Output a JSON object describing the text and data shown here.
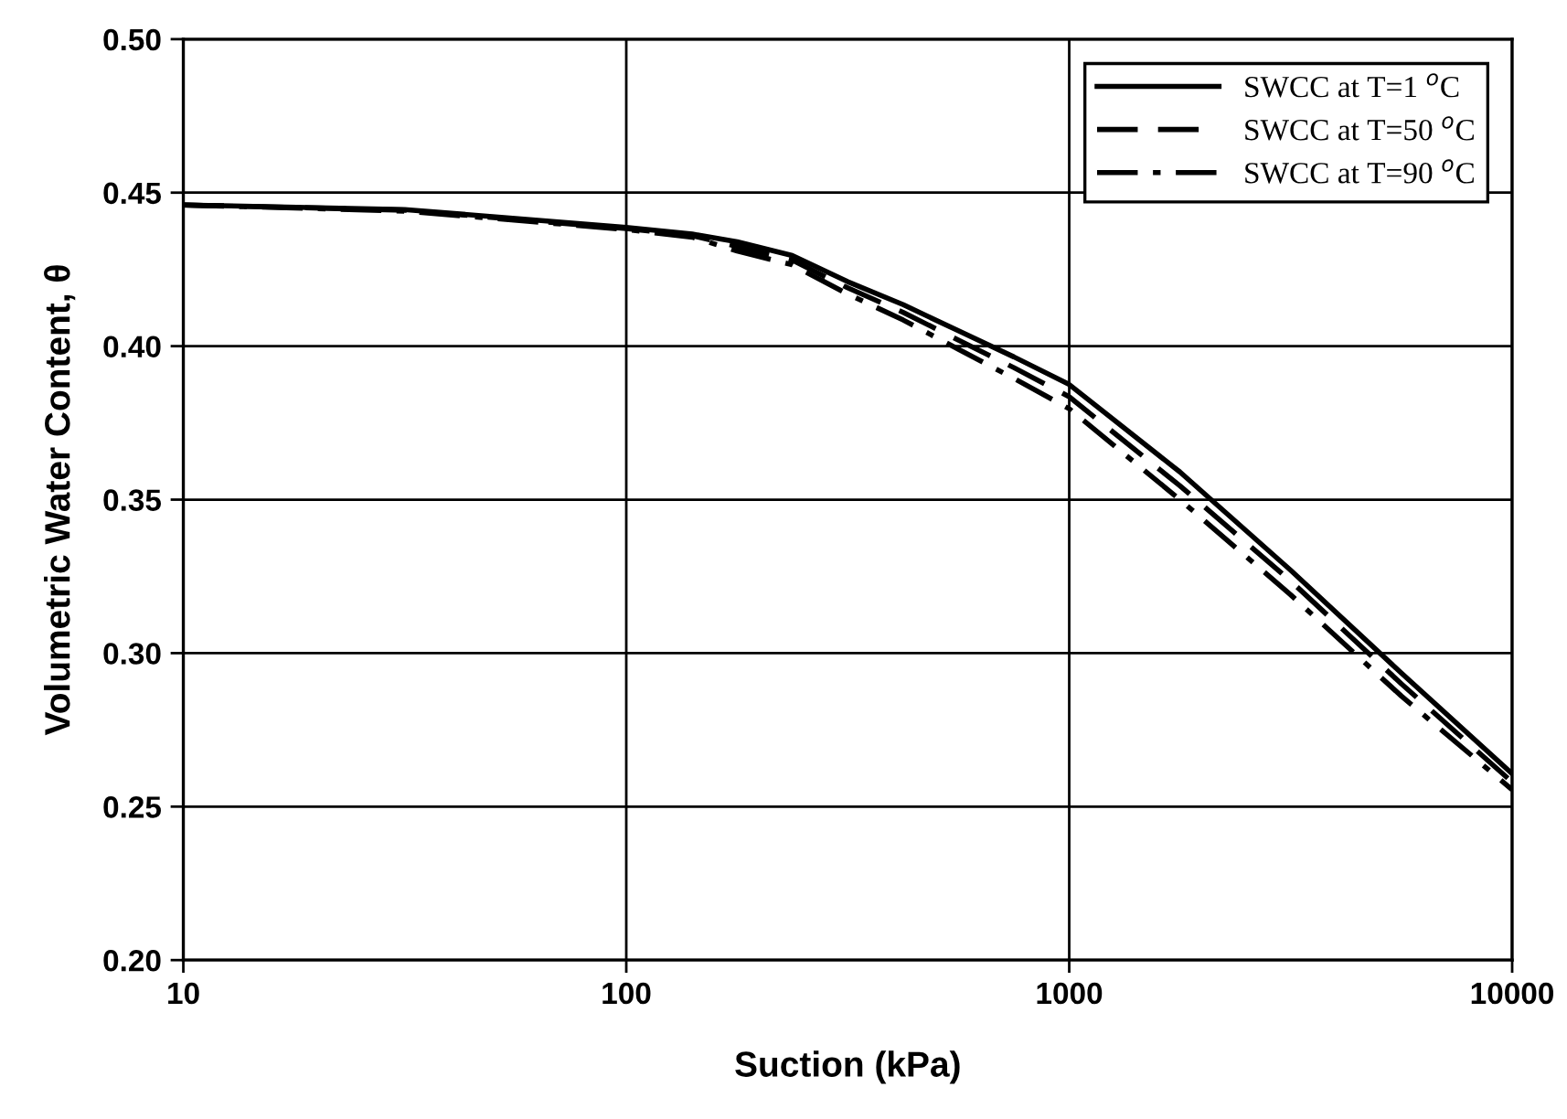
{
  "chart_data": {
    "type": "line",
    "xlabel": "Suction (kPa)",
    "ylabel": "Volumetric Water Content, θ",
    "log": "x",
    "x": [
      10,
      31.6,
      100,
      141,
      178,
      237,
      316,
      422,
      562,
      750,
      1000,
      1778,
      3162,
      5623,
      10000
    ],
    "series": [
      {
        "name": "SWCC at T=1 $^{o}$C",
        "color": "#000000",
        "line_style": "solid",
        "values": [
          0.446,
          0.4445,
          0.4387,
          0.4365,
          0.434,
          0.4295,
          0.421,
          0.4135,
          0.405,
          0.3965,
          0.3875,
          0.359,
          0.327,
          0.2935,
          0.2607
        ]
      },
      {
        "name": "SWCC at T=50 $^{o}$C",
        "color": "#000000",
        "line_style": "dashed",
        "values": [
          0.446,
          0.4443,
          0.4383,
          0.436,
          0.4325,
          0.428,
          0.419,
          0.411,
          0.402,
          0.393,
          0.3835,
          0.3545,
          0.3235,
          0.29,
          0.258
        ]
      },
      {
        "name": "SWCC at T=90 $^{o}$C",
        "color": "#000000",
        "line_style": "dashdot",
        "values": [
          0.446,
          0.444,
          0.438,
          0.4355,
          0.431,
          0.4265,
          0.417,
          0.4085,
          0.399,
          0.3895,
          0.3796,
          0.35,
          0.319,
          0.286,
          0.2555
        ]
      }
    ],
    "xlim": [
      10,
      10000
    ],
    "xticks": [
      10,
      100,
      1000,
      10000
    ],
    "ylim": [
      0.2,
      0.5
    ],
    "yticks": [
      {
        "value": 0.2,
        "label": "0.20"
      },
      {
        "value": 0.25,
        "label": "0.25"
      },
      {
        "value": 0.3,
        "label": "0.30"
      },
      {
        "value": 0.35,
        "label": "0.35"
      },
      {
        "value": 0.4,
        "label": "0.40"
      },
      {
        "value": 0.45,
        "label": "0.45"
      },
      {
        "value": 0.5,
        "label": "0.50"
      }
    ],
    "grid": true,
    "legend": "top right",
    "marker": "none"
  }
}
